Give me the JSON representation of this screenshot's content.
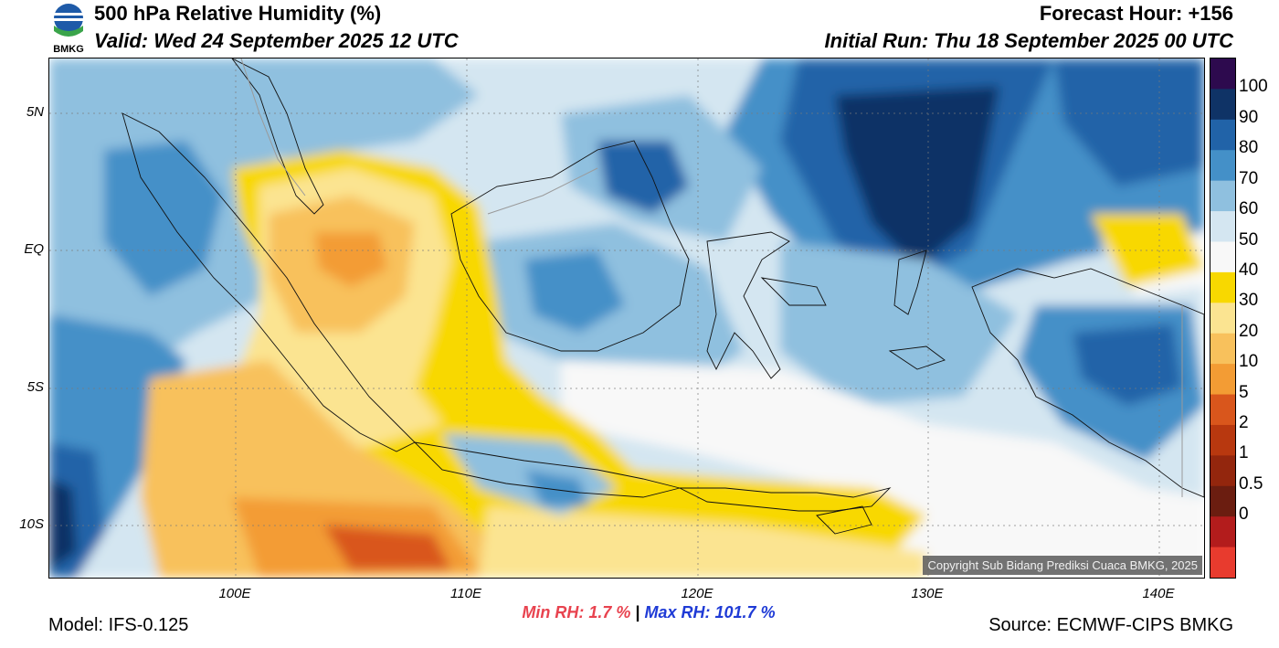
{
  "header": {
    "title": "500 hPa Relative Humidity (%)",
    "valid": "Valid: Wed 24 September 2025 12 UTC",
    "forecast_hour": "Forecast Hour: +156",
    "initial_run": "Initial Run: Thu 18 September 2025 00 UTC",
    "logo_text": "BMKG"
  },
  "axes": {
    "lat_labels": [
      "5N",
      "EQ",
      "5S",
      "10S"
    ],
    "lon_labels": [
      "100E",
      "110E",
      "120E",
      "130E",
      "140E"
    ]
  },
  "colorbar": {
    "labels": [
      "100",
      "90",
      "80",
      "70",
      "60",
      "50",
      "40",
      "30",
      "20",
      "10",
      "5",
      "2",
      "1",
      "0.5",
      "0"
    ],
    "colors": [
      "#2d0a4e",
      "#0f3366",
      "#2163a8",
      "#4490c8",
      "#8fc0df",
      "#d4e6f1",
      "#f8f8f8",
      "#f8d800",
      "#fbe491",
      "#f8c15c",
      "#f39c34",
      "#d9561c",
      "#b8380f",
      "#93260d",
      "#6b1d10",
      "#b31c1c",
      "#e83b2e"
    ]
  },
  "stats": {
    "min_rh": "Min RH:   1.7 %",
    "separator": "|",
    "max_rh": "Max RH: 101.7 %"
  },
  "footer": {
    "model": "Model: IFS-0.125",
    "source": "Source: ECMWF-CIPS BMKG",
    "copyright": "Copyright Sub Bidang Prediksi Cuaca BMKG, 2025"
  }
}
